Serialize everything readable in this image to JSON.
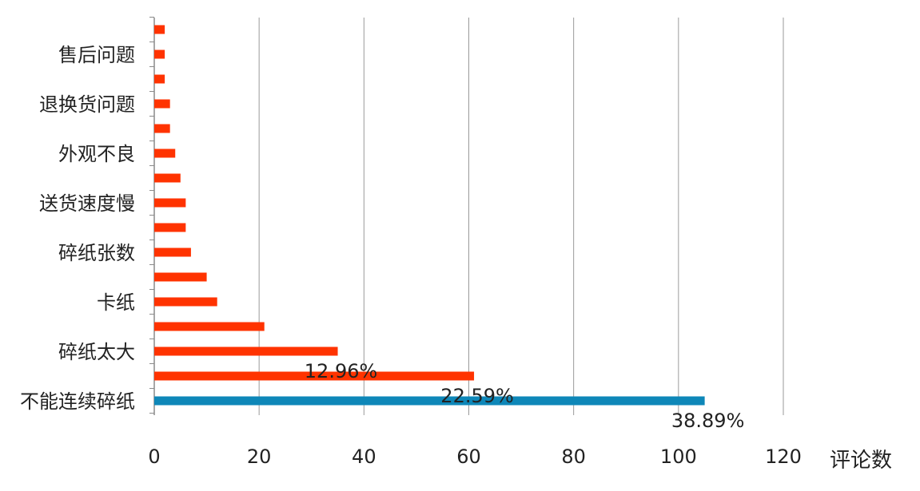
{
  "chart_data": {
    "type": "bar",
    "orientation": "horizontal",
    "xlabel": "评论数",
    "ylabel": "",
    "title": "",
    "xlim": [
      0,
      120
    ],
    "xticks": [
      0,
      20,
      40,
      60,
      80,
      100,
      120
    ],
    "grid": "vertical",
    "legend": "none",
    "categories": [
      "不能连续碎纸",
      "",
      "碎纸太大",
      "",
      "卡纸",
      "",
      "碎纸张数",
      "",
      "送货速度慢",
      "",
      "外观不良",
      "",
      "退换货问题",
      "",
      "售后问题",
      ""
    ],
    "values": [
      105,
      61,
      35,
      21,
      12,
      10,
      7,
      6,
      6,
      5,
      4,
      3,
      3,
      2,
      2,
      2
    ],
    "bar_colors": {
      "highlight": "#0e87b8",
      "default": "#ff3300"
    },
    "highlight_index": 0,
    "data_labels": [
      {
        "bar_index": 0,
        "text": "38.89%"
      },
      {
        "bar_index": 1,
        "text": "22.59%"
      },
      {
        "bar_index": 2,
        "text": "12.96%"
      }
    ]
  }
}
